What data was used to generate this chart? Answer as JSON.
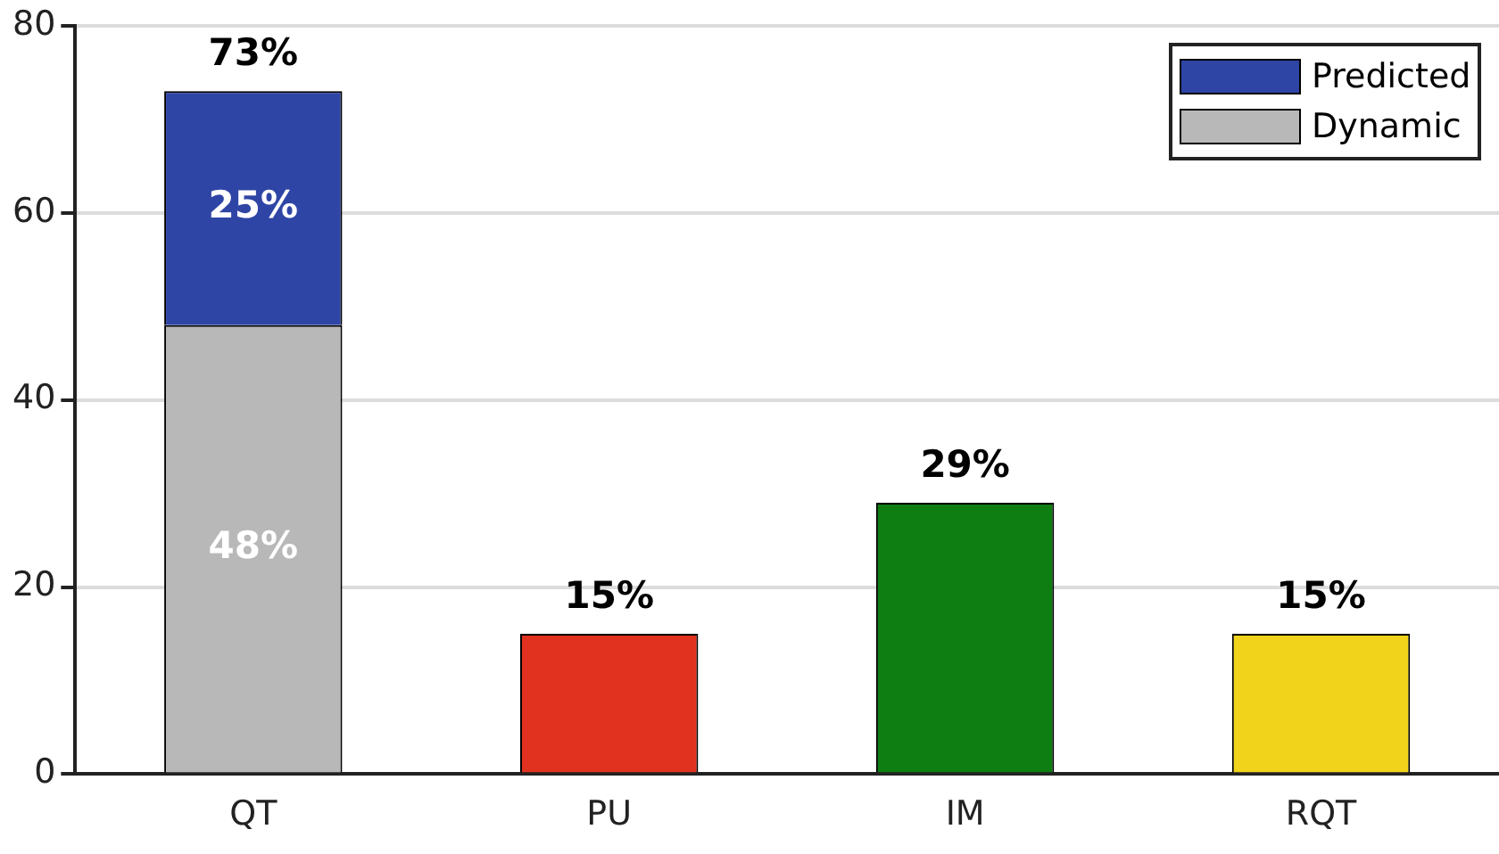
{
  "chart_data": {
    "type": "bar",
    "stacked": true,
    "categories": [
      "QT",
      "PU",
      "IM",
      "RQT"
    ],
    "series": [
      {
        "name": "Dynamic",
        "color": "#b8b8b8",
        "values": [
          48,
          null,
          null,
          null
        ],
        "value_labels": [
          "48%",
          null,
          null,
          null
        ]
      },
      {
        "name": "Predicted",
        "color": "#2f45a5",
        "values": [
          25,
          null,
          null,
          null
        ],
        "value_labels": [
          "25%",
          null,
          null,
          null
        ]
      },
      {
        "colors": [
          "#ffffff",
          "#e0321f",
          "#0f7e12",
          "#f0d31a"
        ],
        "values": [
          null,
          15,
          29,
          15
        ]
      }
    ],
    "totals": [
      "73%",
      "15%",
      "29%",
      "15%"
    ],
    "ylim": [
      0,
      80
    ],
    "yticks": [
      0,
      20,
      40,
      60,
      80
    ],
    "grid": "y",
    "legend": "top right"
  }
}
